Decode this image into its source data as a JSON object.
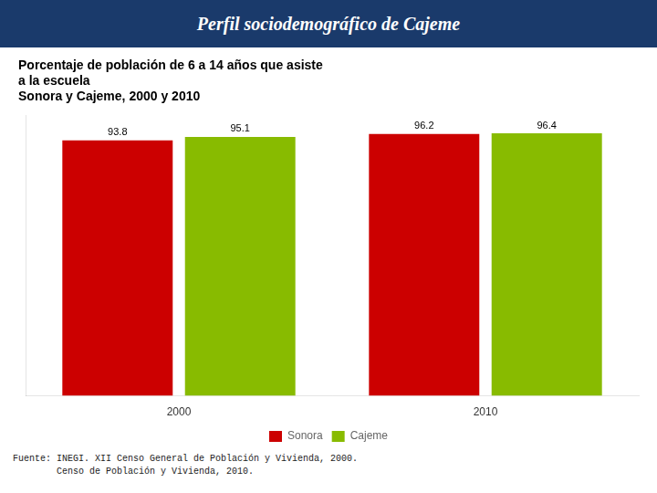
{
  "chart_data": {
    "type": "bar",
    "title": [
      "Porcentaje de población de 6 a 14 años que asiste",
      "a la escuela",
      "Sonora y Cajeme, 2000 y 2010"
    ],
    "subtitle": "Perfil sociodemográfico de Cajeme",
    "categories": [
      "2000",
      "2010"
    ],
    "series": [
      {
        "name": "Sonora",
        "color": "#cc0000",
        "values": [
          93.8,
          96.2
        ]
      },
      {
        "name": "Cajeme",
        "color": "#88bb00",
        "values": [
          95.1,
          96.4
        ]
      }
    ],
    "ylim": [
      0,
      103
    ],
    "yticks": [],
    "grid": false,
    "legend": "bottom",
    "data_labels": true,
    "tick_labels": "x",
    "annotations": [
      "Fuente: INEGI. XII Censo General de Población y Vivienda, 2000.",
      "        Censo de Población y Vivienda, 2010."
    ]
  }
}
